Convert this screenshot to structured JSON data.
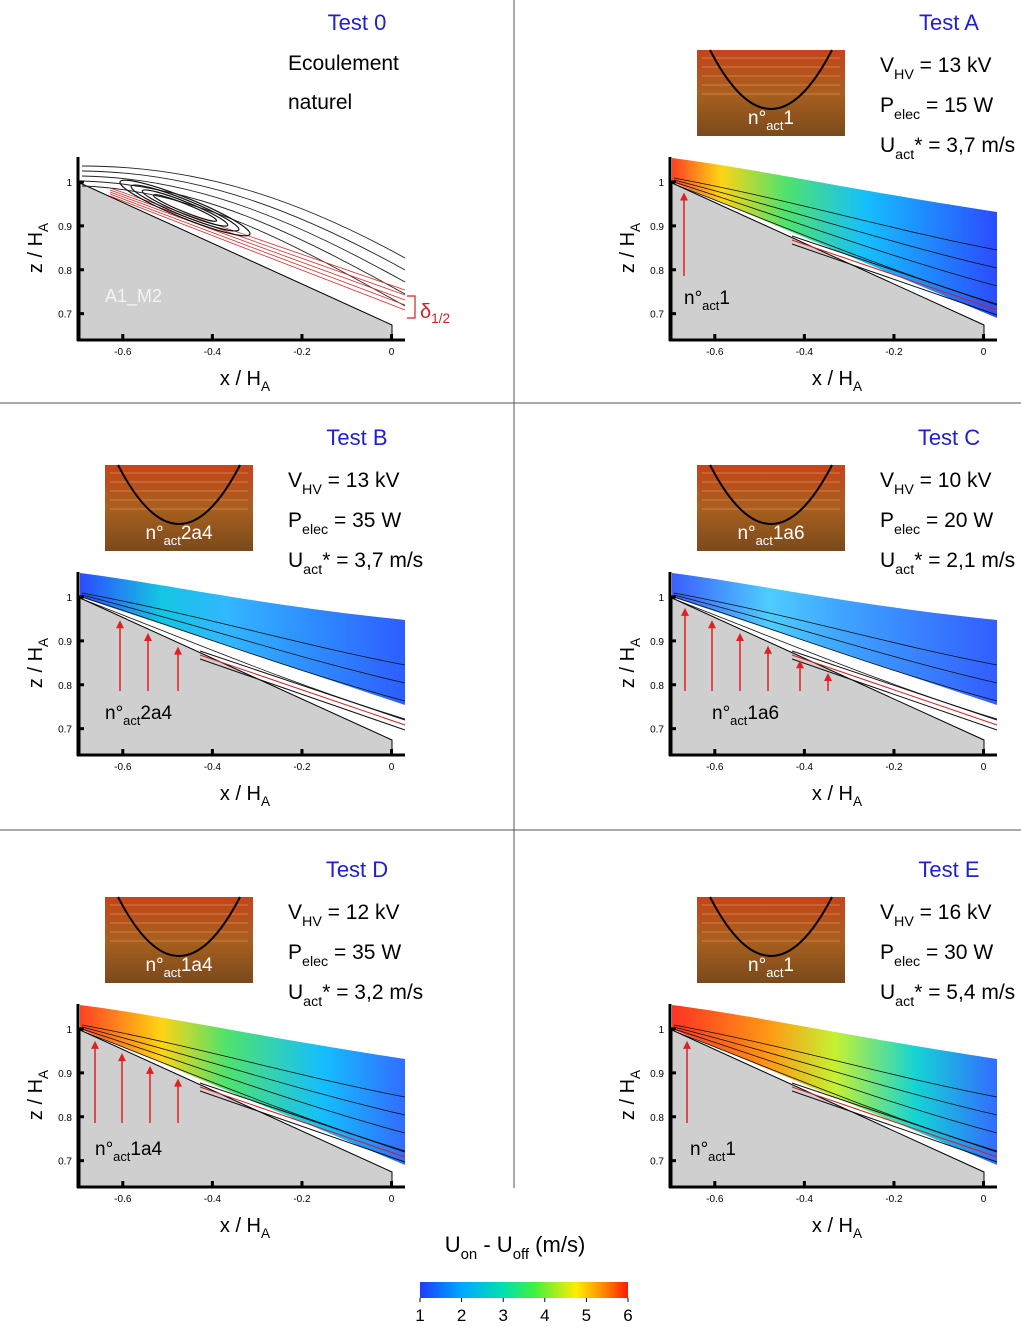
{
  "panels": [
    {
      "title": "Test 0",
      "notes": [
        "Ecoulement",
        "naturel"
      ],
      "case_label": "A1_M2",
      "thickness_label": [
        "δ",
        "1/2"
      ],
      "xlabel": [
        "x / H",
        "A"
      ],
      "ylabel": [
        "z / H",
        "A"
      ],
      "xlim": [
        -0.7,
        0.03
      ],
      "ylim": [
        0.64,
        1.05
      ],
      "xticks": [
        -0.6,
        -0.4,
        -0.2,
        0
      ],
      "yticks": [
        0.7,
        0.8,
        0.9,
        1
      ]
    },
    {
      "title": "Test A",
      "params": [
        [
          "V",
          "HV",
          " = 13 kV"
        ],
        [
          "P",
          "elec",
          " = 15 W"
        ],
        [
          "U",
          "act",
          "* = 3,7 m/s"
        ]
      ],
      "actuators": [
        "n°",
        "act",
        "1"
      ],
      "xlabel": [
        "x / H",
        "A"
      ],
      "ylabel": [
        "z / H",
        "A"
      ],
      "xlim": [
        -0.7,
        0.03
      ],
      "ylim": [
        0.64,
        1.05
      ],
      "xticks": [
        -0.6,
        -0.4,
        -0.2,
        0
      ],
      "yticks": [
        0.7,
        0.8,
        0.9,
        1
      ]
    },
    {
      "title": "Test B",
      "params": [
        [
          "V",
          "HV",
          " = 13 kV"
        ],
        [
          "P",
          "elec",
          " = 35 W"
        ],
        [
          "U",
          "act",
          "* = 3,7 m/s"
        ]
      ],
      "actuators": [
        "n°",
        "act",
        "2a4"
      ],
      "xlabel": [
        "x / H",
        "A"
      ],
      "ylabel": [
        "z / H",
        "A"
      ],
      "xlim": [
        -0.7,
        0.03
      ],
      "ylim": [
        0.64,
        1.05
      ],
      "xticks": [
        -0.6,
        -0.4,
        -0.2,
        0
      ],
      "yticks": [
        0.7,
        0.8,
        0.9,
        1
      ]
    },
    {
      "title": "Test C",
      "params": [
        [
          "V",
          "HV",
          " = 10 kV"
        ],
        [
          "P",
          "elec",
          " = 20 W"
        ],
        [
          "U",
          "act",
          "* = 2,1 m/s"
        ]
      ],
      "actuators": [
        "n°",
        "act",
        "1a6"
      ],
      "xlabel": [
        "x / H",
        "A"
      ],
      "ylabel": [
        "z / H",
        "A"
      ],
      "xlim": [
        -0.7,
        0.03
      ],
      "ylim": [
        0.64,
        1.05
      ],
      "xticks": [
        -0.6,
        -0.4,
        -0.2,
        0
      ],
      "yticks": [
        0.7,
        0.8,
        0.9,
        1
      ]
    },
    {
      "title": "Test D",
      "params": [
        [
          "V",
          "HV",
          " = 12 kV"
        ],
        [
          "P",
          "elec",
          " = 35 W"
        ],
        [
          "U",
          "act",
          "* = 3,2 m/s"
        ]
      ],
      "actuators": [
        "n°",
        "act",
        "1a4"
      ],
      "xlabel": [
        "x / H",
        "A"
      ],
      "ylabel": [
        "z / H",
        "A"
      ],
      "xlim": [
        -0.7,
        0.03
      ],
      "ylim": [
        0.64,
        1.05
      ],
      "xticks": [
        -0.6,
        -0.4,
        -0.2,
        0
      ],
      "yticks": [
        0.7,
        0.8,
        0.9,
        1
      ]
    },
    {
      "title": "Test E",
      "params": [
        [
          "V",
          "HV",
          " = 16 kV"
        ],
        [
          "P",
          "elec",
          " = 30 W"
        ],
        [
          "U",
          "act",
          "* = 5,4 m/s"
        ]
      ],
      "actuators": [
        "n°",
        "act",
        "1"
      ],
      "xlabel": [
        "x / H",
        "A"
      ],
      "ylabel": [
        "z / H",
        "A"
      ],
      "xlim": [
        -0.7,
        0.03
      ],
      "ylim": [
        0.64,
        1.05
      ],
      "xticks": [
        -0.6,
        -0.4,
        -0.2,
        0
      ],
      "yticks": [
        0.7,
        0.8,
        0.9,
        1
      ]
    }
  ],
  "colorbar": {
    "label": [
      "U",
      "on",
      " - U",
      "off",
      " (m/s)"
    ],
    "lim": [
      1,
      6
    ],
    "ticks": [
      1,
      2,
      3,
      4,
      5,
      6
    ]
  }
}
